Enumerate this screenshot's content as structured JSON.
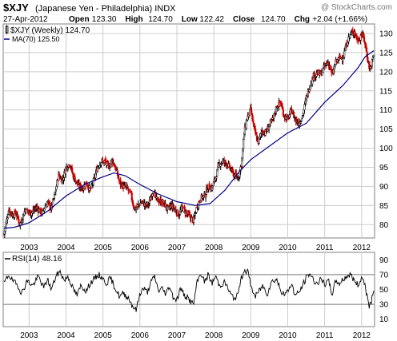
{
  "header": {
    "symbol": "$XJY",
    "name": "(Japanese Yen - Philadelphia) INDX",
    "watermark": "@ StockCharts.com",
    "date": "27-Apr-2012",
    "quote": [
      {
        "label": "Open",
        "value": "123.30"
      },
      {
        "label": "High",
        "value": "124.70"
      },
      {
        "label": "Low",
        "value": "122.42"
      },
      {
        "label": "Close",
        "value": "124.70"
      },
      {
        "label": "Chg",
        "value": "+2.04 (+1.66%)"
      }
    ]
  },
  "colors": {
    "up": "#000000",
    "down": "#cc0000",
    "ma": "#000088",
    "rsi": "#000000",
    "grid": "#cccccc"
  },
  "chart_data": [
    {
      "type": "candlestick",
      "legend": [
        {
          "label": "$XJY (Weekly) 124.70",
          "marker": "candle"
        },
        {
          "label": "MA(70) 125.50",
          "marker": "line",
          "color": "#000088"
        }
      ],
      "x_ticks": [
        "2003",
        "2004",
        "2005",
        "2006",
        "2007",
        "2008",
        "2009",
        "2010",
        "2011",
        "2012"
      ],
      "y_ticks": [
        80,
        85,
        90,
        95,
        100,
        105,
        110,
        115,
        120,
        125,
        130
      ],
      "ylim": [
        76.5,
        132.5
      ],
      "xlim": [
        2002.3,
        2012.35
      ],
      "price_path": [
        [
          2002.32,
          77.5
        ],
        [
          2002.45,
          84.0
        ],
        [
          2002.55,
          82.5
        ],
        [
          2002.65,
          83.0
        ],
        [
          2002.75,
          80.0
        ],
        [
          2002.9,
          84.0
        ],
        [
          2003.05,
          83.0
        ],
        [
          2003.2,
          84.5
        ],
        [
          2003.35,
          83.0
        ],
        [
          2003.5,
          86.0
        ],
        [
          2003.6,
          84.0
        ],
        [
          2003.7,
          88.0
        ],
        [
          2003.8,
          93.0
        ],
        [
          2003.9,
          91.5
        ],
        [
          2004.0,
          95.0
        ],
        [
          2004.1,
          96.0
        ],
        [
          2004.2,
          92.5
        ],
        [
          2004.35,
          90.0
        ],
        [
          2004.45,
          89.5
        ],
        [
          2004.55,
          91.0
        ],
        [
          2004.65,
          89.0
        ],
        [
          2004.75,
          91.5
        ],
        [
          2004.85,
          95.0
        ],
        [
          2004.95,
          96.5
        ],
        [
          2005.05,
          96.5
        ],
        [
          2005.15,
          95.0
        ],
        [
          2005.25,
          97.0
        ],
        [
          2005.35,
          94.5
        ],
        [
          2005.45,
          91.0
        ],
        [
          2005.55,
          90.0
        ],
        [
          2005.65,
          89.5
        ],
        [
          2005.75,
          88.0
        ],
        [
          2005.85,
          84.0
        ],
        [
          2005.95,
          85.0
        ],
        [
          2006.05,
          86.0
        ],
        [
          2006.15,
          85.0
        ],
        [
          2006.25,
          85.5
        ],
        [
          2006.35,
          89.0
        ],
        [
          2006.45,
          86.5
        ],
        [
          2006.55,
          86.0
        ],
        [
          2006.65,
          85.5
        ],
        [
          2006.75,
          84.0
        ],
        [
          2006.85,
          85.0
        ],
        [
          2006.95,
          84.0
        ],
        [
          2007.05,
          82.5
        ],
        [
          2007.15,
          84.5
        ],
        [
          2007.25,
          83.0
        ],
        [
          2007.35,
          82.0
        ],
        [
          2007.45,
          81.0
        ],
        [
          2007.55,
          85.0
        ],
        [
          2007.65,
          87.0
        ],
        [
          2007.75,
          87.5
        ],
        [
          2007.85,
          90.0
        ],
        [
          2007.95,
          89.5
        ],
        [
          2008.05,
          92.5
        ],
        [
          2008.15,
          96.0
        ],
        [
          2008.25,
          96.5
        ],
        [
          2008.35,
          96.0
        ],
        [
          2008.45,
          94.5
        ],
        [
          2008.55,
          93.0
        ],
        [
          2008.65,
          92.0
        ],
        [
          2008.75,
          96.0
        ],
        [
          2008.82,
          104.0
        ],
        [
          2008.9,
          108.0
        ],
        [
          2009.0,
          110.0
        ],
        [
          2009.1,
          104.5
        ],
        [
          2009.2,
          101.5
        ],
        [
          2009.3,
          104.5
        ],
        [
          2009.4,
          104.0
        ],
        [
          2009.5,
          106.0
        ],
        [
          2009.6,
          107.5
        ],
        [
          2009.7,
          111.0
        ],
        [
          2009.8,
          112.0
        ],
        [
          2009.9,
          108.5
        ],
        [
          2010.0,
          107.5
        ],
        [
          2010.1,
          110.0
        ],
        [
          2010.2,
          107.5
        ],
        [
          2010.3,
          106.5
        ],
        [
          2010.4,
          108.5
        ],
        [
          2010.5,
          113.0
        ],
        [
          2010.6,
          116.5
        ],
        [
          2010.7,
          119.0
        ],
        [
          2010.8,
          119.5
        ],
        [
          2010.9,
          119.5
        ],
        [
          2011.0,
          121.5
        ],
        [
          2011.1,
          122.5
        ],
        [
          2011.2,
          119.0
        ],
        [
          2011.3,
          122.5
        ],
        [
          2011.4,
          123.5
        ],
        [
          2011.5,
          124.0
        ],
        [
          2011.6,
          127.5
        ],
        [
          2011.7,
          130.0
        ],
        [
          2011.8,
          130.5
        ],
        [
          2011.9,
          128.0
        ],
        [
          2012.0,
          130.0
        ],
        [
          2012.08,
          128.0
        ],
        [
          2012.15,
          124.0
        ],
        [
          2012.22,
          120.5
        ],
        [
          2012.28,
          122.5
        ],
        [
          2012.33,
          124.7
        ]
      ],
      "ma_path": [
        [
          2002.32,
          79.0
        ],
        [
          2002.6,
          79.3
        ],
        [
          2003.0,
          80.5
        ],
        [
          2003.5,
          83.5
        ],
        [
          2004.0,
          87.5
        ],
        [
          2004.5,
          90.5
        ],
        [
          2005.0,
          92.5
        ],
        [
          2005.3,
          93.5
        ],
        [
          2005.6,
          92.8
        ],
        [
          2006.0,
          90.5
        ],
        [
          2006.5,
          88.0
        ],
        [
          2007.0,
          86.0
        ],
        [
          2007.5,
          85.0
        ],
        [
          2007.9,
          85.5
        ],
        [
          2008.3,
          89.0
        ],
        [
          2008.7,
          94.0
        ],
        [
          2009.0,
          97.0
        ],
        [
          2009.5,
          100.5
        ],
        [
          2010.0,
          104.0
        ],
        [
          2010.5,
          106.5
        ],
        [
          2011.0,
          112.0
        ],
        [
          2011.5,
          116.5
        ],
        [
          2011.9,
          121.0
        ],
        [
          2012.1,
          124.0
        ],
        [
          2012.33,
          125.5
        ]
      ]
    },
    {
      "type": "line",
      "legend": [
        {
          "label": "RSI(14) 48.16",
          "marker": "line"
        }
      ],
      "x_ticks": [
        "2003",
        "2004",
        "2005",
        "2006",
        "2007",
        "2008",
        "2009",
        "2010",
        "2011",
        "2012"
      ],
      "y_ticks": [
        90,
        70,
        50,
        30,
        10
      ],
      "reference_lines": [
        70,
        30
      ],
      "ylim": [
        0,
        100
      ],
      "xlim": [
        2002.3,
        2012.35
      ],
      "rsi_path": [
        [
          2002.32,
          58
        ],
        [
          2002.45,
          70
        ],
        [
          2002.55,
          62
        ],
        [
          2002.7,
          55
        ],
        [
          2002.8,
          45
        ],
        [
          2002.95,
          62
        ],
        [
          2003.1,
          55
        ],
        [
          2003.25,
          68
        ],
        [
          2003.4,
          52
        ],
        [
          2003.5,
          64
        ],
        [
          2003.6,
          50
        ],
        [
          2003.75,
          70
        ],
        [
          2003.85,
          74
        ],
        [
          2003.95,
          62
        ],
        [
          2004.05,
          68
        ],
        [
          2004.2,
          50
        ],
        [
          2004.3,
          42
        ],
        [
          2004.4,
          55
        ],
        [
          2004.55,
          48
        ],
        [
          2004.65,
          58
        ],
        [
          2004.8,
          66
        ],
        [
          2004.9,
          70
        ],
        [
          2005.0,
          64
        ],
        [
          2005.1,
          58
        ],
        [
          2005.2,
          66
        ],
        [
          2005.3,
          55
        ],
        [
          2005.45,
          40
        ],
        [
          2005.55,
          45
        ],
        [
          2005.7,
          38
        ],
        [
          2005.8,
          28
        ],
        [
          2005.9,
          22
        ],
        [
          2006.0,
          45
        ],
        [
          2006.1,
          52
        ],
        [
          2006.2,
          46
        ],
        [
          2006.3,
          60
        ],
        [
          2006.4,
          68
        ],
        [
          2006.5,
          48
        ],
        [
          2006.6,
          52
        ],
        [
          2006.7,
          44
        ],
        [
          2006.8,
          55
        ],
        [
          2006.9,
          40
        ],
        [
          2007.0,
          36
        ],
        [
          2007.1,
          52
        ],
        [
          2007.2,
          42
        ],
        [
          2007.3,
          38
        ],
        [
          2007.45,
          30
        ],
        [
          2007.55,
          60
        ],
        [
          2007.65,
          72
        ],
        [
          2007.75,
          60
        ],
        [
          2007.85,
          70
        ],
        [
          2007.95,
          58
        ],
        [
          2008.05,
          68
        ],
        [
          2008.15,
          55
        ],
        [
          2008.3,
          60
        ],
        [
          2008.45,
          44
        ],
        [
          2008.55,
          38
        ],
        [
          2008.65,
          42
        ],
        [
          2008.72,
          62
        ],
        [
          2008.82,
          76
        ],
        [
          2008.92,
          74
        ],
        [
          2009.02,
          52
        ],
        [
          2009.12,
          40
        ],
        [
          2009.22,
          48
        ],
        [
          2009.32,
          55
        ],
        [
          2009.45,
          44
        ],
        [
          2009.55,
          60
        ],
        [
          2009.7,
          64
        ],
        [
          2009.8,
          50
        ],
        [
          2009.9,
          42
        ],
        [
          2010.0,
          48
        ],
        [
          2010.1,
          58
        ],
        [
          2010.2,
          42
        ],
        [
          2010.3,
          46
        ],
        [
          2010.4,
          55
        ],
        [
          2010.5,
          66
        ],
        [
          2010.6,
          72
        ],
        [
          2010.7,
          62
        ],
        [
          2010.8,
          58
        ],
        [
          2010.9,
          64
        ],
        [
          2011.0,
          56
        ],
        [
          2011.1,
          62
        ],
        [
          2011.2,
          44
        ],
        [
          2011.3,
          62
        ],
        [
          2011.4,
          58
        ],
        [
          2011.5,
          64
        ],
        [
          2011.6,
          68
        ],
        [
          2011.7,
          70
        ],
        [
          2011.8,
          62
        ],
        [
          2011.9,
          56
        ],
        [
          2012.0,
          66
        ],
        [
          2012.08,
          60
        ],
        [
          2012.13,
          44
        ],
        [
          2012.2,
          28
        ],
        [
          2012.26,
          34
        ],
        [
          2012.3,
          42
        ],
        [
          2012.33,
          48.16
        ]
      ]
    }
  ]
}
